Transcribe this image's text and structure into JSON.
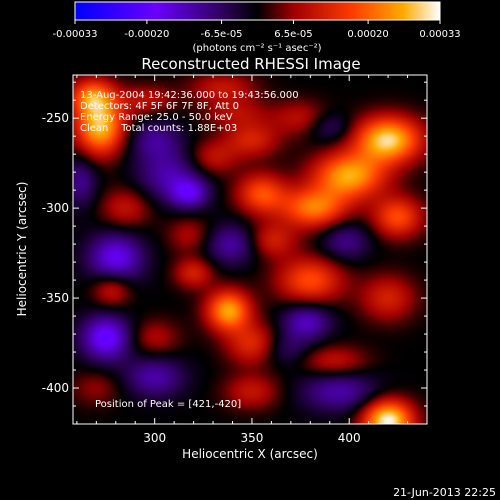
{
  "colorbar": {
    "tick_labels": [
      "-0.00033",
      "-0.00020",
      "-6.5e-05",
      "6.5e-05",
      "0.00020",
      "0.00033"
    ],
    "tick_values": [
      -0.00033,
      -0.0002,
      -6.5e-05,
      6.5e-05,
      0.0002,
      0.00033
    ],
    "range": [
      -0.00033,
      0.00033
    ],
    "units": "(photons cm⁻² s⁻¹ asec⁻²)",
    "colors": [
      "#0000ff",
      "#6a00ff",
      "#000000",
      "#aa0000",
      "#ff4400",
      "#ffa000",
      "#ffffff"
    ]
  },
  "chart_data": {
    "type": "heatmap",
    "title": "Reconstructed RHESSI Image",
    "xlabel": "Heliocentric X (arcsec)",
    "ylabel": "Heliocentric Y (arcsec)",
    "x_ticks": [
      300,
      350,
      400
    ],
    "y_ticks": [
      -250,
      -300,
      -350,
      -400
    ],
    "xlim": [
      258,
      440
    ],
    "ylim": [
      -420,
      -226
    ],
    "annotations": [
      "13-Aug-2004 19:42:36.000 to 19:43:56.000",
      "Detectors: 4F 5F 6F 7F 8F, Att 0",
      "Energy Range: 25.0 - 50.0 keV",
      "Clean    Total counts: 1.88E+03"
    ],
    "peak_label": "Position of Peak = [421,-420]",
    "peak": [
      421,
      -420
    ],
    "blobs": [
      {
        "x": 272,
        "y": -255,
        "v": 0.00028,
        "sx": 9,
        "sy": 11
      },
      {
        "x": 268,
        "y": -238,
        "v": 0.0002,
        "sx": 8,
        "sy": 7
      },
      {
        "x": 296,
        "y": -240,
        "v": 9e-05,
        "sx": 10,
        "sy": 6
      },
      {
        "x": 335,
        "y": -233,
        "v": 0.0001,
        "sx": 12,
        "sy": 6
      },
      {
        "x": 355,
        "y": -292,
        "v": 0.00018,
        "sx": 9,
        "sy": 8
      },
      {
        "x": 350,
        "y": -262,
        "v": 0.00012,
        "sx": 10,
        "sy": 7
      },
      {
        "x": 330,
        "y": -272,
        "v": 0.0001,
        "sx": 9,
        "sy": 7
      },
      {
        "x": 342,
        "y": -247,
        "v": 8e-05,
        "sx": 12,
        "sy": 6
      },
      {
        "x": 375,
        "y": -250,
        "v": 9e-05,
        "sx": 10,
        "sy": 7
      },
      {
        "x": 420,
        "y": -262,
        "v": 0.0003,
        "sx": 12,
        "sy": 9
      },
      {
        "x": 400,
        "y": -282,
        "v": 0.00026,
        "sx": 13,
        "sy": 9
      },
      {
        "x": 382,
        "y": -300,
        "v": 0.00022,
        "sx": 12,
        "sy": 8
      },
      {
        "x": 425,
        "y": -305,
        "v": 0.00018,
        "sx": 9,
        "sy": 8
      },
      {
        "x": 285,
        "y": -300,
        "v": 0.0001,
        "sx": 9,
        "sy": 8
      },
      {
        "x": 318,
        "y": -315,
        "v": 8e-05,
        "sx": 8,
        "sy": 7
      },
      {
        "x": 320,
        "y": -336,
        "v": 0.00012,
        "sx": 7,
        "sy": 6
      },
      {
        "x": 380,
        "y": -340,
        "v": 0.00018,
        "sx": 12,
        "sy": 9
      },
      {
        "x": 360,
        "y": -318,
        "v": 0.00012,
        "sx": 9,
        "sy": 7
      },
      {
        "x": 278,
        "y": -345,
        "v": 0.00012,
        "sx": 7,
        "sy": 7
      },
      {
        "x": 338,
        "y": -357,
        "v": 0.00026,
        "sx": 8,
        "sy": 8
      },
      {
        "x": 300,
        "y": -372,
        "v": 8e-05,
        "sx": 9,
        "sy": 7
      },
      {
        "x": 352,
        "y": -376,
        "v": 0.00016,
        "sx": 10,
        "sy": 8
      },
      {
        "x": 392,
        "y": -385,
        "v": 0.0001,
        "sx": 12,
        "sy": 6
      },
      {
        "x": 420,
        "y": -350,
        "v": 0.00012,
        "sx": 10,
        "sy": 9
      },
      {
        "x": 270,
        "y": -400,
        "v": 6e-05,
        "sx": 9,
        "sy": 7
      },
      {
        "x": 350,
        "y": -402,
        "v": 0.0001,
        "sx": 10,
        "sy": 7
      },
      {
        "x": 420,
        "y": -418,
        "v": 0.00033,
        "sx": 9,
        "sy": 8
      },
      {
        "x": 308,
        "y": -282,
        "v": -0.00012,
        "sx": 12,
        "sy": 10
      },
      {
        "x": 280,
        "y": -328,
        "v": -0.00018,
        "sx": 10,
        "sy": 10
      },
      {
        "x": 318,
        "y": -292,
        "v": -0.00014,
        "sx": 7,
        "sy": 6
      },
      {
        "x": 340,
        "y": -320,
        "v": -0.00012,
        "sx": 10,
        "sy": 8
      },
      {
        "x": 275,
        "y": -372,
        "v": -0.0002,
        "sx": 9,
        "sy": 9
      },
      {
        "x": 300,
        "y": -394,
        "v": -0.00012,
        "sx": 11,
        "sy": 8
      },
      {
        "x": 378,
        "y": -363,
        "v": -0.00014,
        "sx": 9,
        "sy": 7
      },
      {
        "x": 365,
        "y": -378,
        "v": -0.0001,
        "sx": 10,
        "sy": 7
      },
      {
        "x": 395,
        "y": -402,
        "v": -0.00012,
        "sx": 14,
        "sy": 8
      },
      {
        "x": 398,
        "y": -318,
        "v": -0.0001,
        "sx": 9,
        "sy": 8
      },
      {
        "x": 300,
        "y": -262,
        "v": -0.0001,
        "sx": 10,
        "sy": 8
      },
      {
        "x": 390,
        "y": -255,
        "v": -8e-05,
        "sx": 8,
        "sy": 6
      },
      {
        "x": 262,
        "y": -285,
        "v": -0.0001,
        "sx": 6,
        "sy": 10
      }
    ]
  },
  "footer": {
    "timestamp": "21-Jun-2013 22:25"
  }
}
